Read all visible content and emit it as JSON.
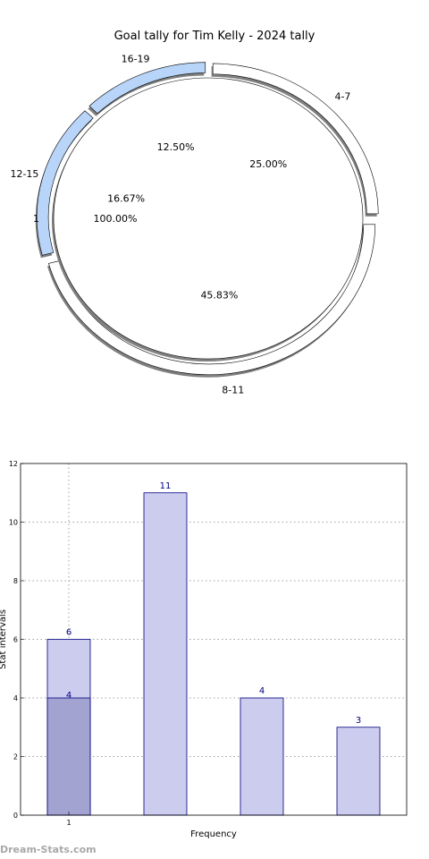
{
  "chart_data": [
    {
      "type": "pie",
      "title": "Goal tally for Tim Kelly - 2024 tally",
      "outer_ring": {
        "slices": [
          {
            "label": "4-7",
            "percent": "25.00%",
            "value": 25.0,
            "color": "#ffffff"
          },
          {
            "label": "16-19",
            "percent": "12.50%",
            "value": 12.5,
            "color": "#b8d4f8"
          },
          {
            "label": "12-15",
            "percent": "16.67%",
            "value": 16.67,
            "color": "#b8d4f8"
          },
          {
            "label": "8-11",
            "percent": "45.83%",
            "value": 45.83,
            "color": "#ffffff"
          }
        ]
      },
      "inner_pie": {
        "slices": [
          {
            "label": "1",
            "percent": "100.00%",
            "value": 100.0,
            "color": "#ffffff"
          }
        ]
      }
    },
    {
      "type": "bar",
      "xlabel": "Frequency",
      "ylabel": "Stat intervals",
      "ylim": [
        0,
        12
      ],
      "yticks": [
        "0",
        "2",
        "4",
        "6",
        "8",
        "10",
        "12"
      ],
      "xticks": [
        "1"
      ],
      "grid": true,
      "bars": [
        {
          "value": 6,
          "label": "6",
          "color": "#ccccee"
        },
        {
          "value": 11,
          "label": "11",
          "color": "#ccccee"
        },
        {
          "value": 4,
          "label": "4",
          "color": "#ccccee"
        },
        {
          "value": 3,
          "label": "3",
          "color": "#ccccee"
        }
      ],
      "overlay_bar": {
        "value": 4,
        "label": "4",
        "color": "#a3a3d1"
      }
    }
  ],
  "watermark": "Dream-Stats.com",
  "colors": {
    "edge": "#000080",
    "shadow": "#808080"
  }
}
